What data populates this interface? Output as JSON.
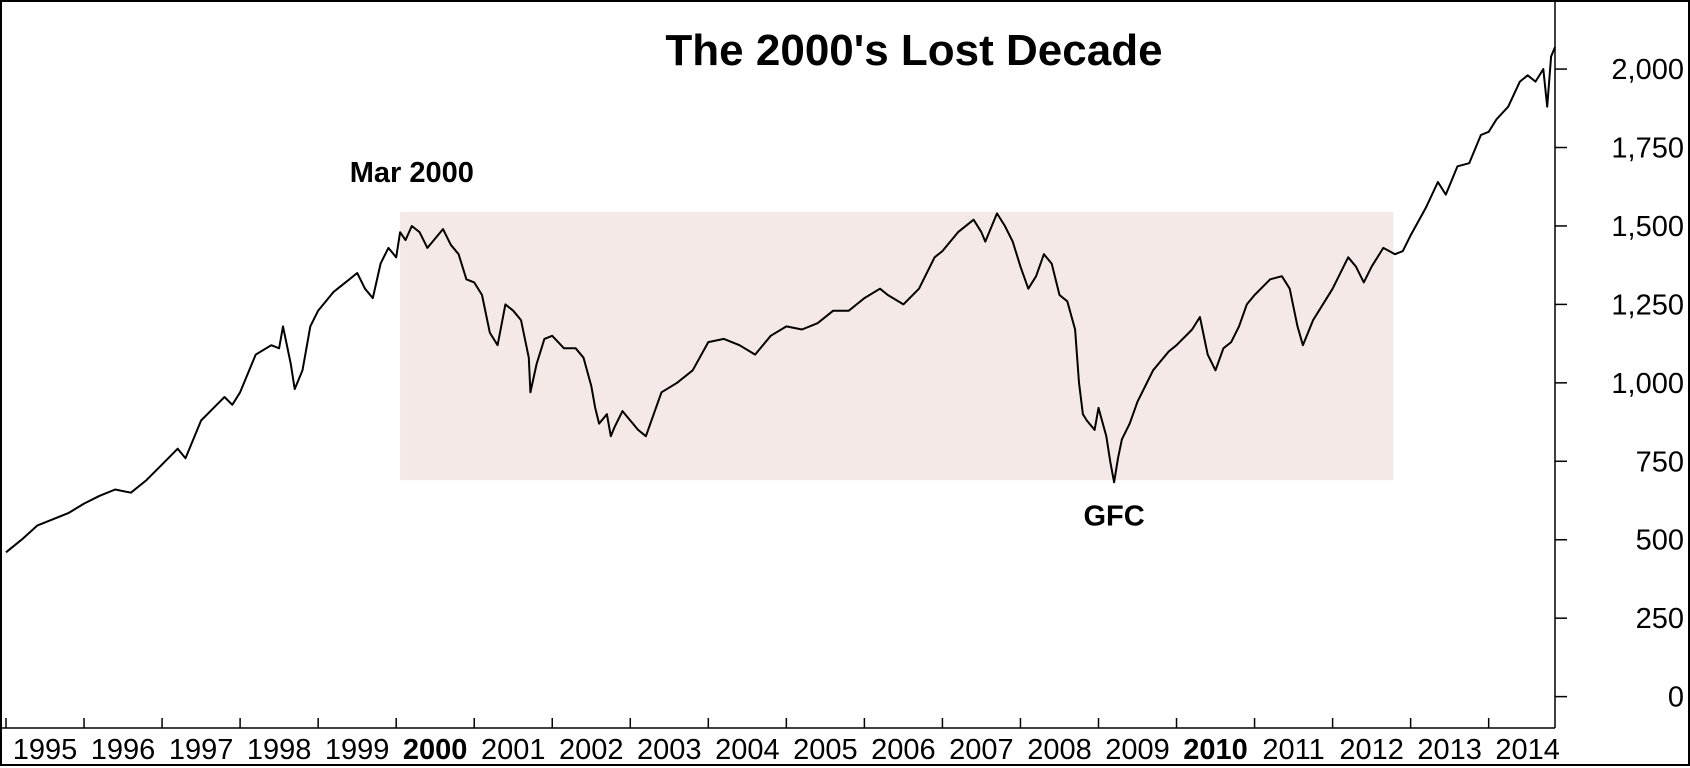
{
  "chart_data": {
    "type": "line",
    "title": "The 2000's Lost Decade",
    "xlabel": "",
    "ylabel": "",
    "x_tick_labels": [
      "1995",
      "1996",
      "1997",
      "1998",
      "1999",
      "2000",
      "2001",
      "2002",
      "2003",
      "2004",
      "2005",
      "2006",
      "2007",
      "2008",
      "2009",
      "2010",
      "2011",
      "2012",
      "2013",
      "2014"
    ],
    "x_bold_ticks": [
      "2000",
      "2010"
    ],
    "xlim": [
      1995.0,
      2014.85
    ],
    "y_ticks": [
      0,
      250,
      500,
      750,
      1000,
      1250,
      1500,
      1750,
      2000
    ],
    "y_tick_labels": [
      "0",
      "250",
      "500",
      "750",
      "1,000",
      "1,250",
      "1,500",
      "1,750",
      "2,000"
    ],
    "ylim": [
      -100,
      2150
    ],
    "y_axis_position": "right",
    "grid": false,
    "line_color": "#000000",
    "highlight_color": "#f5e9e7",
    "highlight_region": {
      "x": [
        2000.05,
        2012.78
      ],
      "y": [
        690,
        1545
      ]
    },
    "annotations": [
      {
        "text": "Mar 2000",
        "x": 2000.2,
        "y": 1640
      },
      {
        "text": "GFC",
        "x": 2009.2,
        "y": 545
      }
    ],
    "series": [
      {
        "values": [
          [
            1995.0,
            460
          ],
          [
            1995.2,
            500
          ],
          [
            1995.4,
            545
          ],
          [
            1995.6,
            565
          ],
          [
            1995.8,
            585
          ],
          [
            1996.0,
            615
          ],
          [
            1996.2,
            640
          ],
          [
            1996.4,
            660
          ],
          [
            1996.6,
            650
          ],
          [
            1996.8,
            690
          ],
          [
            1997.0,
            740
          ],
          [
            1997.2,
            790
          ],
          [
            1997.3,
            760
          ],
          [
            1997.5,
            880
          ],
          [
            1997.7,
            930
          ],
          [
            1997.8,
            955
          ],
          [
            1997.9,
            930
          ],
          [
            1998.0,
            970
          ],
          [
            1998.2,
            1090
          ],
          [
            1998.4,
            1120
          ],
          [
            1998.5,
            1110
          ],
          [
            1998.55,
            1180
          ],
          [
            1998.65,
            1060
          ],
          [
            1998.7,
            980
          ],
          [
            1998.8,
            1040
          ],
          [
            1998.9,
            1180
          ],
          [
            1999.0,
            1230
          ],
          [
            1999.2,
            1290
          ],
          [
            1999.4,
            1330
          ],
          [
            1999.5,
            1350
          ],
          [
            1999.6,
            1300
          ],
          [
            1999.7,
            1270
          ],
          [
            1999.8,
            1380
          ],
          [
            1999.9,
            1430
          ],
          [
            2000.0,
            1400
          ],
          [
            2000.05,
            1480
          ],
          [
            2000.12,
            1455
          ],
          [
            2000.2,
            1500
          ],
          [
            2000.3,
            1480
          ],
          [
            2000.4,
            1430
          ],
          [
            2000.5,
            1460
          ],
          [
            2000.6,
            1490
          ],
          [
            2000.7,
            1440
          ],
          [
            2000.8,
            1410
          ],
          [
            2000.9,
            1330
          ],
          [
            2001.0,
            1320
          ],
          [
            2001.1,
            1280
          ],
          [
            2001.2,
            1160
          ],
          [
            2001.3,
            1120
          ],
          [
            2001.4,
            1250
          ],
          [
            2001.5,
            1230
          ],
          [
            2001.6,
            1200
          ],
          [
            2001.7,
            1080
          ],
          [
            2001.72,
            970
          ],
          [
            2001.8,
            1060
          ],
          [
            2001.9,
            1140
          ],
          [
            2002.0,
            1150
          ],
          [
            2002.15,
            1110
          ],
          [
            2002.3,
            1110
          ],
          [
            2002.4,
            1080
          ],
          [
            2002.5,
            990
          ],
          [
            2002.55,
            920
          ],
          [
            2002.6,
            870
          ],
          [
            2002.7,
            900
          ],
          [
            2002.75,
            830
          ],
          [
            2002.8,
            860
          ],
          [
            2002.9,
            910
          ],
          [
            2003.0,
            880
          ],
          [
            2003.1,
            850
          ],
          [
            2003.2,
            830
          ],
          [
            2003.3,
            900
          ],
          [
            2003.4,
            970
          ],
          [
            2003.6,
            1000
          ],
          [
            2003.8,
            1040
          ],
          [
            2004.0,
            1130
          ],
          [
            2004.2,
            1140
          ],
          [
            2004.4,
            1120
          ],
          [
            2004.6,
            1090
          ],
          [
            2004.8,
            1150
          ],
          [
            2005.0,
            1180
          ],
          [
            2005.2,
            1170
          ],
          [
            2005.4,
            1190
          ],
          [
            2005.6,
            1230
          ],
          [
            2005.8,
            1230
          ],
          [
            2006.0,
            1270
          ],
          [
            2006.2,
            1300
          ],
          [
            2006.3,
            1280
          ],
          [
            2006.5,
            1250
          ],
          [
            2006.7,
            1300
          ],
          [
            2006.9,
            1400
          ],
          [
            2007.0,
            1420
          ],
          [
            2007.2,
            1480
          ],
          [
            2007.4,
            1520
          ],
          [
            2007.5,
            1480
          ],
          [
            2007.55,
            1450
          ],
          [
            2007.7,
            1540
          ],
          [
            2007.8,
            1500
          ],
          [
            2007.9,
            1450
          ],
          [
            2008.0,
            1370
          ],
          [
            2008.1,
            1300
          ],
          [
            2008.2,
            1340
          ],
          [
            2008.3,
            1410
          ],
          [
            2008.4,
            1380
          ],
          [
            2008.5,
            1280
          ],
          [
            2008.6,
            1260
          ],
          [
            2008.7,
            1170
          ],
          [
            2008.75,
            1000
          ],
          [
            2008.8,
            900
          ],
          [
            2008.85,
            880
          ],
          [
            2008.95,
            850
          ],
          [
            2009.0,
            920
          ],
          [
            2009.1,
            830
          ],
          [
            2009.15,
            750
          ],
          [
            2009.2,
            683
          ],
          [
            2009.25,
            760
          ],
          [
            2009.3,
            820
          ],
          [
            2009.4,
            870
          ],
          [
            2009.5,
            940
          ],
          [
            2009.6,
            990
          ],
          [
            2009.7,
            1040
          ],
          [
            2009.9,
            1100
          ],
          [
            2010.0,
            1120
          ],
          [
            2010.2,
            1170
          ],
          [
            2010.3,
            1210
          ],
          [
            2010.4,
            1090
          ],
          [
            2010.5,
            1040
          ],
          [
            2010.6,
            1110
          ],
          [
            2010.7,
            1130
          ],
          [
            2010.8,
            1180
          ],
          [
            2010.9,
            1250
          ],
          [
            2011.0,
            1280
          ],
          [
            2011.2,
            1330
          ],
          [
            2011.35,
            1340
          ],
          [
            2011.45,
            1300
          ],
          [
            2011.55,
            1180
          ],
          [
            2011.62,
            1120
          ],
          [
            2011.75,
            1200
          ],
          [
            2011.9,
            1260
          ],
          [
            2012.0,
            1300
          ],
          [
            2012.2,
            1400
          ],
          [
            2012.3,
            1370
          ],
          [
            2012.4,
            1320
          ],
          [
            2012.5,
            1370
          ],
          [
            2012.65,
            1430
          ],
          [
            2012.8,
            1410
          ],
          [
            2012.9,
            1420
          ],
          [
            2013.0,
            1470
          ],
          [
            2013.2,
            1560
          ],
          [
            2013.35,
            1640
          ],
          [
            2013.45,
            1600
          ],
          [
            2013.6,
            1690
          ],
          [
            2013.75,
            1700
          ],
          [
            2013.9,
            1790
          ],
          [
            2014.0,
            1800
          ],
          [
            2014.1,
            1840
          ],
          [
            2014.25,
            1880
          ],
          [
            2014.4,
            1960
          ],
          [
            2014.5,
            1980
          ],
          [
            2014.6,
            1960
          ],
          [
            2014.7,
            2000
          ],
          [
            2014.75,
            1880
          ],
          [
            2014.8,
            2040
          ],
          [
            2014.85,
            2070
          ]
        ]
      }
    ]
  }
}
